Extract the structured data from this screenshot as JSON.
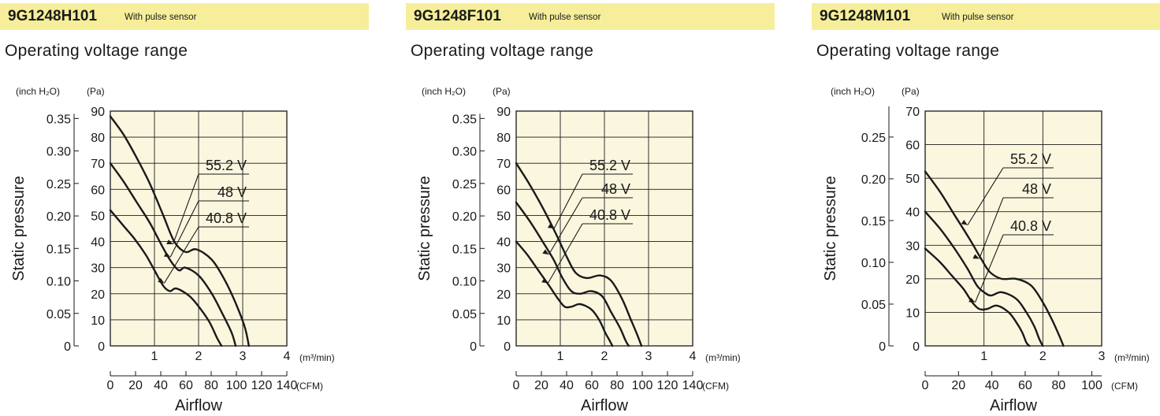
{
  "colors": {
    "header_bg": "#f6ee9a",
    "plot_bg": "#fbf7df",
    "ink": "#1a1a1a"
  },
  "panels": [
    {
      "model": "9G1248H101",
      "model_note": "With pulse sensor",
      "subtitle": "Operating voltage range",
      "chart_data": {
        "type": "line",
        "title": "9G1248H101",
        "xlabel": "Airflow",
        "ylabel": "Static pressure",
        "x_unit_primary": "(m³/min)",
        "x_unit_secondary": "(CFM)",
        "y_unit_primary": "(Pa)",
        "y_unit_secondary": "(inch H₂O)",
        "xlim": [
          0,
          4
        ],
        "ylim": [
          0,
          90
        ],
        "x_ticks": [
          1,
          2,
          3,
          4
        ],
        "x_ticks_cfm": [
          0,
          20,
          40,
          60,
          80,
          100,
          120,
          140
        ],
        "y_ticks": [
          0,
          10,
          20,
          30,
          40,
          50,
          60,
          70,
          80,
          90
        ],
        "y_ticks_inch": [
          "0",
          "0.05",
          "0.10",
          "0.15",
          "0.20",
          "0.25",
          "0.30",
          "0.35"
        ],
        "grid": true,
        "series": [
          {
            "name": "55.2 V",
            "x": [
              0,
              0.3,
              0.6,
              0.9,
              1.2,
              1.45,
              1.7,
              1.95,
              2.3,
              2.6,
              2.85,
              3.05,
              3.14
            ],
            "y": [
              88,
              81,
              72,
              62,
              50,
              40,
              36,
              37,
              33,
              25,
              16,
              7,
              0
            ]
          },
          {
            "name": "48 V",
            "x": [
              0,
              0.3,
              0.6,
              0.9,
              1.15,
              1.35,
              1.55,
              1.7,
              2.0,
              2.3,
              2.55,
              2.75,
              2.84
            ],
            "y": [
              70,
              63,
              55,
              47,
              39,
              33,
              29,
              30,
              27,
              20,
              12,
              5,
              0
            ]
          },
          {
            "name": "40.8 V",
            "x": [
              0,
              0.3,
              0.55,
              0.8,
              1.0,
              1.2,
              1.35,
              1.5,
              1.8,
              2.05,
              2.25,
              2.42,
              2.52
            ],
            "y": [
              52,
              46,
              41,
              35,
              29,
              23,
              21,
              22,
              19,
              14,
              9,
              3,
              0
            ]
          }
        ],
        "labels": [
          {
            "series": "55.2 V",
            "x": 1.42,
            "y": 39
          },
          {
            "series": "48 V",
            "x": 1.36,
            "y": 34
          },
          {
            "series": "40.8 V",
            "x": 1.22,
            "y": 24
          }
        ]
      }
    },
    {
      "model": "9G1248F101",
      "model_note": "With pulse sensor",
      "subtitle": "Operating voltage range",
      "chart_data": {
        "type": "line",
        "title": "9G1248F101",
        "xlabel": "Airflow",
        "ylabel": "Static pressure",
        "x_unit_primary": "(m³/min)",
        "x_unit_secondary": "(CFM)",
        "y_unit_primary": "(Pa)",
        "y_unit_secondary": "(inch H₂O)",
        "xlim": [
          0,
          4
        ],
        "ylim": [
          0,
          90
        ],
        "x_ticks": [
          1,
          2,
          3,
          4
        ],
        "x_ticks_cfm": [
          0,
          20,
          40,
          60,
          80,
          100,
          120,
          140
        ],
        "y_ticks": [
          0,
          10,
          20,
          30,
          40,
          50,
          60,
          70,
          80,
          90
        ],
        "y_ticks_inch": [
          "0",
          "0.05",
          "0.10",
          "0.15",
          "0.20",
          "0.25",
          "0.30",
          "0.35"
        ],
        "grid": true,
        "series": [
          {
            "name": "55.2 V",
            "x": [
              0,
              0.3,
              0.6,
              0.9,
              1.15,
              1.35,
              1.6,
              1.9,
              2.15,
              2.4,
              2.6,
              2.75,
              2.84
            ],
            "y": [
              70,
              62,
              53,
              43,
              34,
              28,
              26,
              27,
              25,
              18,
              10,
              4,
              0
            ]
          },
          {
            "name": "48 V",
            "x": [
              0,
              0.3,
              0.6,
              0.85,
              1.05,
              1.25,
              1.45,
              1.7,
              1.95,
              2.15,
              2.35,
              2.48,
              2.55
            ],
            "y": [
              55,
              48,
              40,
              33,
              26,
              21,
              20,
              21,
              19,
              13,
              7,
              2,
              0
            ]
          },
          {
            "name": "40.8 V",
            "x": [
              0,
              0.25,
              0.5,
              0.75,
              0.95,
              1.1,
              1.25,
              1.45,
              1.7,
              1.88,
              2.02,
              2.12,
              2.18
            ],
            "y": [
              40,
              35,
              29,
              23,
              18,
              15,
              15,
              16,
              14,
              10,
              5,
              2,
              0
            ]
          }
        ],
        "labels": [
          {
            "series": "55.2 V",
            "x": 0.86,
            "y": 45
          },
          {
            "series": "48 V",
            "x": 0.74,
            "y": 35
          },
          {
            "series": "40.8 V",
            "x": 0.72,
            "y": 24
          }
        ]
      }
    },
    {
      "model": "9G1248M101",
      "model_note": "With pulse sensor",
      "subtitle": "Operating voltage range",
      "chart_data": {
        "type": "line",
        "title": "9G1248M101",
        "xlabel": "Airflow",
        "ylabel": "Static pressure",
        "x_unit_primary": "(m³/min)",
        "x_unit_secondary": "(CFM)",
        "y_unit_primary": "(Pa)",
        "y_unit_secondary": "(inch H₂O)",
        "xlim": [
          0,
          3
        ],
        "ylim": [
          0,
          70
        ],
        "x_ticks": [
          1,
          2,
          3
        ],
        "x_ticks_cfm": [
          0,
          20,
          40,
          60,
          80,
          100
        ],
        "y_ticks": [
          0,
          10,
          20,
          30,
          40,
          50,
          60,
          70
        ],
        "y_ticks_inch": [
          "0",
          "0.05",
          "0.10",
          "0.15",
          "0.20",
          "0.25"
        ],
        "grid": true,
        "series": [
          {
            "name": "55.2 V",
            "x": [
              0,
              0.25,
              0.5,
              0.75,
              0.95,
              1.1,
              1.3,
              1.55,
              1.8,
              2.0,
              2.15,
              2.28,
              2.35
            ],
            "y": [
              52,
              46,
              39,
              32,
              26,
              22,
              20,
              20,
              18,
              13,
              8,
              3,
              0
            ]
          },
          {
            "name": "48 V",
            "x": [
              0,
              0.25,
              0.5,
              0.72,
              0.88,
              1.0,
              1.12,
              1.3,
              1.55,
              1.72,
              1.85,
              1.94,
              2.0
            ],
            "y": [
              40,
              35,
              29,
              23,
              18,
              16,
              15,
              16,
              14,
              10,
              6,
              2,
              0
            ]
          },
          {
            "name": "40.8 V",
            "x": [
              0,
              0.25,
              0.45,
              0.65,
              0.8,
              0.92,
              1.05,
              1.22,
              1.42,
              1.55,
              1.65,
              1.72,
              1.77
            ],
            "y": [
              29,
              25,
              21,
              17,
              13,
              11,
              11,
              12,
              10,
              7,
              4,
              1,
              0
            ]
          }
        ],
        "labels": [
          {
            "series": "55.2 V",
            "x": 0.72,
            "y": 36
          },
          {
            "series": "48 V",
            "x": 0.92,
            "y": 26
          },
          {
            "series": "40.8 V",
            "x": 0.85,
            "y": 13
          }
        ]
      }
    }
  ]
}
